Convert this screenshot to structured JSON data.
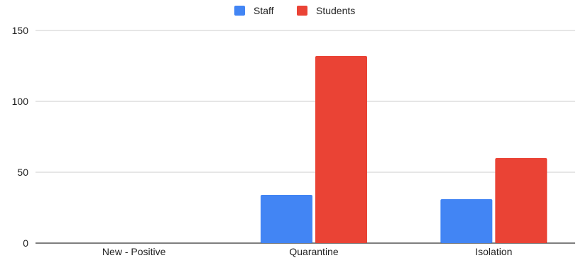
{
  "chart_data": {
    "type": "bar",
    "categories": [
      "New - Positive",
      "Quarantine",
      "Isolation"
    ],
    "series": [
      {
        "name": "Staff",
        "color": "#4285f4",
        "values": [
          0,
          34,
          31
        ]
      },
      {
        "name": "Students",
        "color": "#ea4335",
        "values": [
          0,
          132,
          60
        ]
      }
    ],
    "y_ticks": [
      "0",
      "50",
      "100",
      "150"
    ],
    "ylim": [
      0,
      150
    ],
    "grid": true,
    "legend_position": "top-center"
  }
}
